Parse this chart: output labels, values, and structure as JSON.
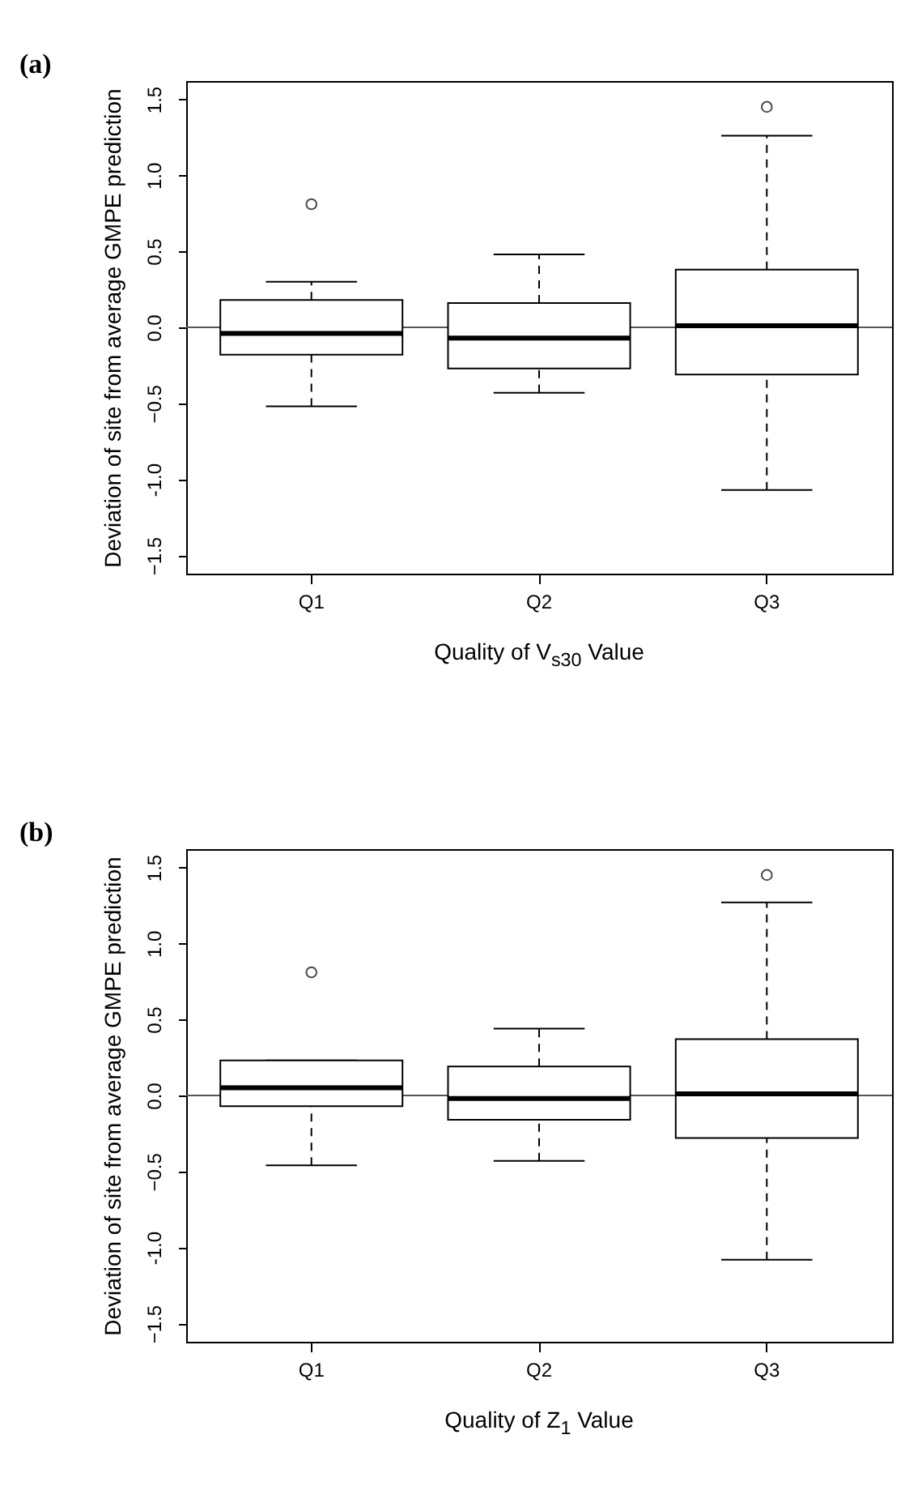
{
  "chart_data": [
    {
      "type": "box",
      "title": "(a)",
      "xlabel": "Quality of V$_{s30}$ Value",
      "ylabel": "Deviation of site from average GMPE prediction",
      "categories": [
        "Q1",
        "Q2",
        "Q3"
      ],
      "boxes": [
        {
          "low": -0.52,
          "q1": -0.18,
          "median": -0.04,
          "q3": 0.18,
          "high": 0.3,
          "outliers": [
            0.81
          ]
        },
        {
          "low": -0.43,
          "q1": -0.27,
          "median": -0.07,
          "q3": 0.16,
          "high": 0.48
        },
        {
          "low": -1.07,
          "q1": -0.31,
          "median": 0.01,
          "q3": 0.38,
          "high": 1.26,
          "outliers": [
            1.45
          ]
        }
      ],
      "ylim": [
        -1.62,
        1.62
      ],
      "yticks": [
        -1.5,
        {
          "value": -1,
          "label": "-1.0"
        },
        -0.5,
        {
          "value": 0,
          "label": "0.0"
        },
        0.5,
        {
          "value": 1,
          "label": "1.0"
        },
        1.5
      ],
      "ref_lines": [
        {
          "axis": "y",
          "value": 0,
          "color": "#555555"
        }
      ]
    },
    {
      "type": "box",
      "title": "(b)",
      "xlabel": "Quality of Z$_{1}$ Value",
      "ylabel": "Deviation of site from average GMPE prediction",
      "categories": [
        "Q1",
        "Q2",
        "Q3"
      ],
      "boxes": [
        {
          "low": -0.46,
          "q1": -0.07,
          "median": 0.05,
          "q3": 0.23,
          "high": 0.23,
          "outliers": [
            0.81
          ]
        },
        {
          "low": -0.43,
          "q1": -0.16,
          "median": -0.02,
          "q3": 0.19,
          "high": 0.44
        },
        {
          "low": -1.08,
          "q1": -0.28,
          "median": 0.01,
          "q3": 0.37,
          "high": 1.27,
          "outliers": [
            1.45
          ]
        }
      ],
      "ylim": [
        -1.62,
        1.62
      ],
      "yticks": [
        -1.5,
        {
          "value": -1,
          "label": "-1.0"
        },
        -0.5,
        {
          "value": 0,
          "label": "0.0"
        },
        0.5,
        {
          "value": 1,
          "label": "1.0"
        },
        1.5
      ],
      "ref_lines": [
        {
          "axis": "y",
          "value": 0,
          "color": "#555555"
        }
      ]
    }
  ]
}
